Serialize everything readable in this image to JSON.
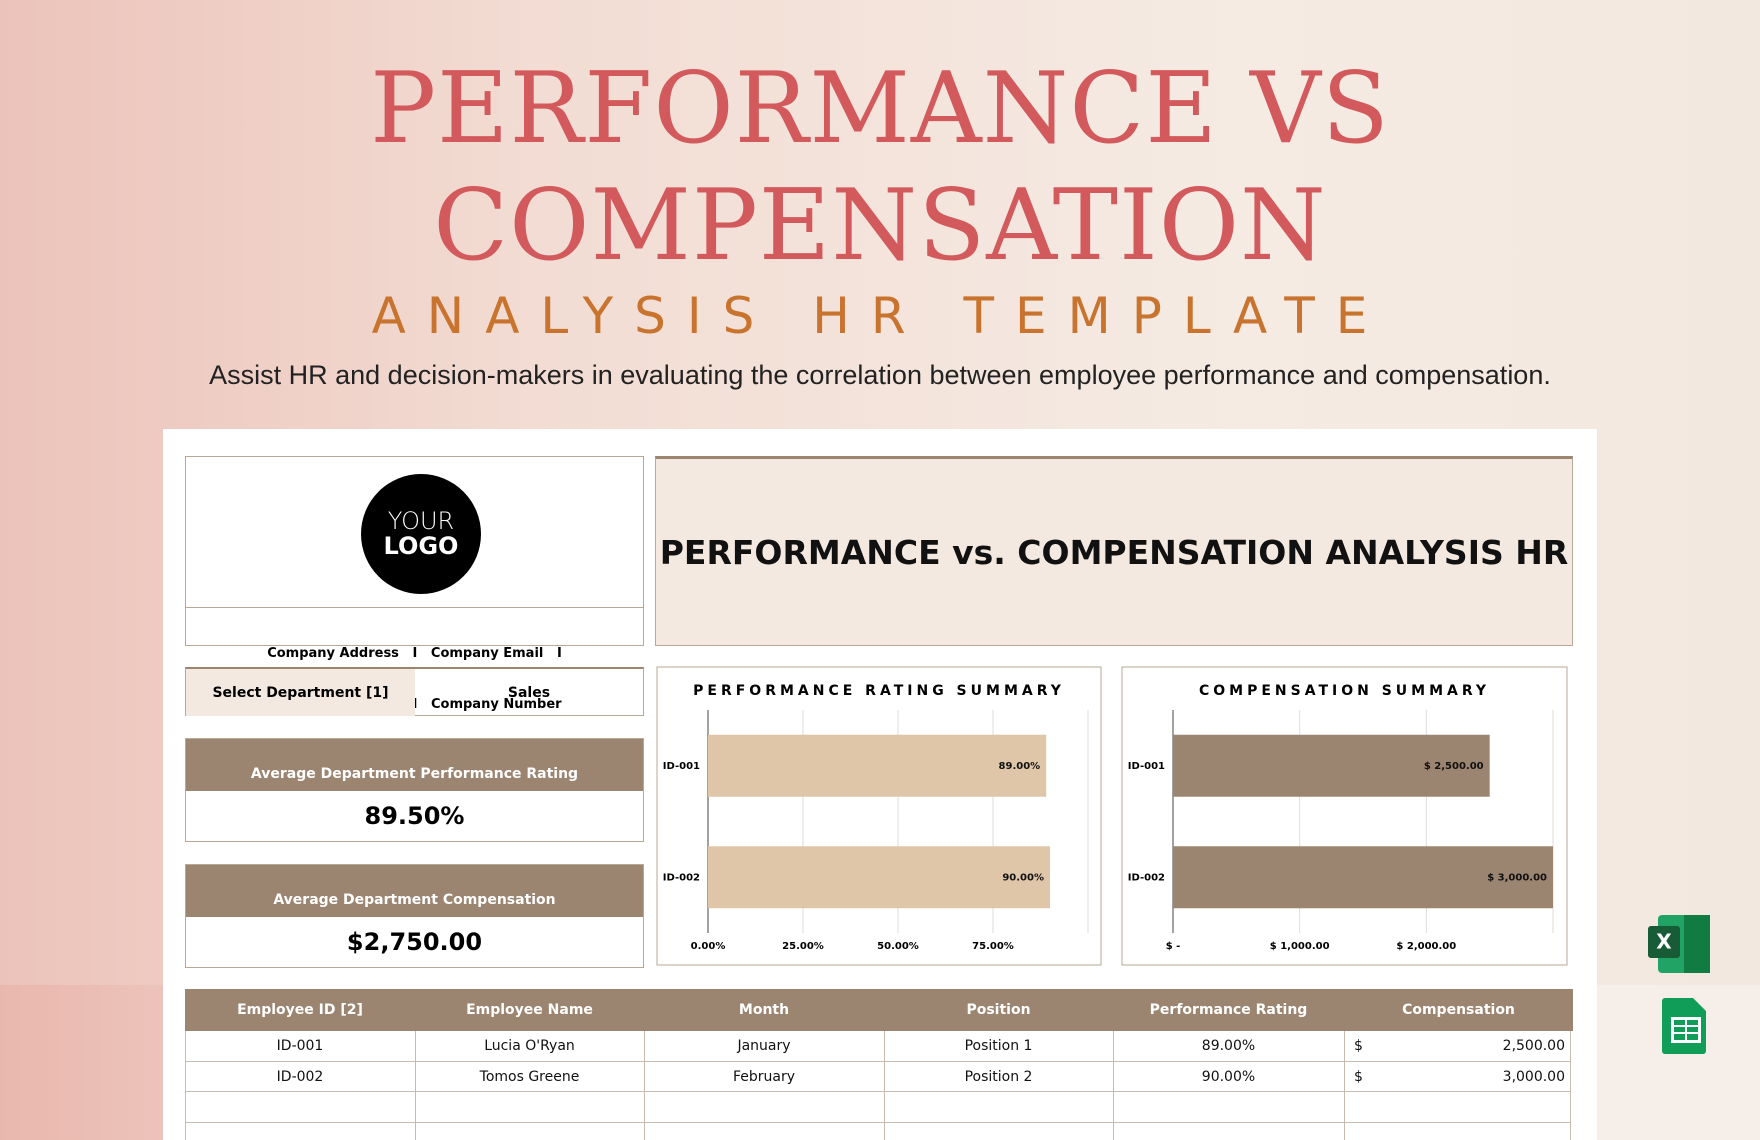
{
  "header": {
    "title_line1": "PERFORMANCE VS",
    "title_line2": "COMPENSATION",
    "subtitle": "ANALYSIS HR TEMPLATE",
    "description": "Assist HR and decision-makers in evaluating the correlation between employee performance and compensation."
  },
  "logo": {
    "line1": "YOUR",
    "line2": "LOGO"
  },
  "company_info": {
    "line1": "Company Address   I   Company Email   I",
    "line2": "Company Website   I   Company Number"
  },
  "dashboard_title": "PERFORMANCE vs. COMPENSATION ANALYSIS HR",
  "department_filter": {
    "label": "Select Department [1]",
    "value": "Sales"
  },
  "kpis": [
    {
      "label": "Average Department Performance Rating",
      "value": "89.50%"
    },
    {
      "label": "Average Department Compensation",
      "value": "$2,750.00"
    }
  ],
  "chart_data": [
    {
      "type": "bar",
      "orientation": "horizontal",
      "title": "PERFORMANCE RATING SUMMARY",
      "categories": [
        "ID-001",
        "ID-002"
      ],
      "values": [
        89,
        90
      ],
      "value_labels": [
        "89.00%",
        "90.00%"
      ],
      "color": "#e0c6a8",
      "xlim": [
        0,
        100
      ],
      "xticks": [
        {
          "value": 0,
          "label": "0.00%"
        },
        {
          "value": 25,
          "label": "25.00%"
        },
        {
          "value": 50,
          "label": "50.00%"
        },
        {
          "value": 75,
          "label": "75.00%"
        }
      ],
      "grid": true
    },
    {
      "type": "bar",
      "orientation": "horizontal",
      "title": "COMPENSATION SUMMARY",
      "categories": [
        "ID-001",
        "ID-002"
      ],
      "values": [
        2500,
        3000
      ],
      "value_labels": [
        "$ 2,500.00",
        "$ 3,000.00"
      ],
      "color": "#9c8570",
      "xlim": [
        0,
        3000
      ],
      "xticks": [
        {
          "value": 0,
          "label": "$ -"
        },
        {
          "value": 1000,
          "label": "$ 1,000.00"
        },
        {
          "value": 2000,
          "label": "$ 2,000.00"
        }
      ],
      "grid": true
    }
  ],
  "table": {
    "columns": [
      "Employee ID [2]",
      "Employee Name",
      "Month",
      "Position",
      "Performance Rating",
      "Compensation"
    ],
    "rows": [
      [
        "ID-001",
        "Lucia O'Ryan",
        "January",
        "Position 1",
        "89.00%",
        "$",
        "2,500.00"
      ],
      [
        "ID-002",
        "Tomos Greene",
        "February",
        "Position 2",
        "90.00%",
        "$",
        "3,000.00"
      ]
    ]
  },
  "app_icons": {
    "excel": "X"
  }
}
